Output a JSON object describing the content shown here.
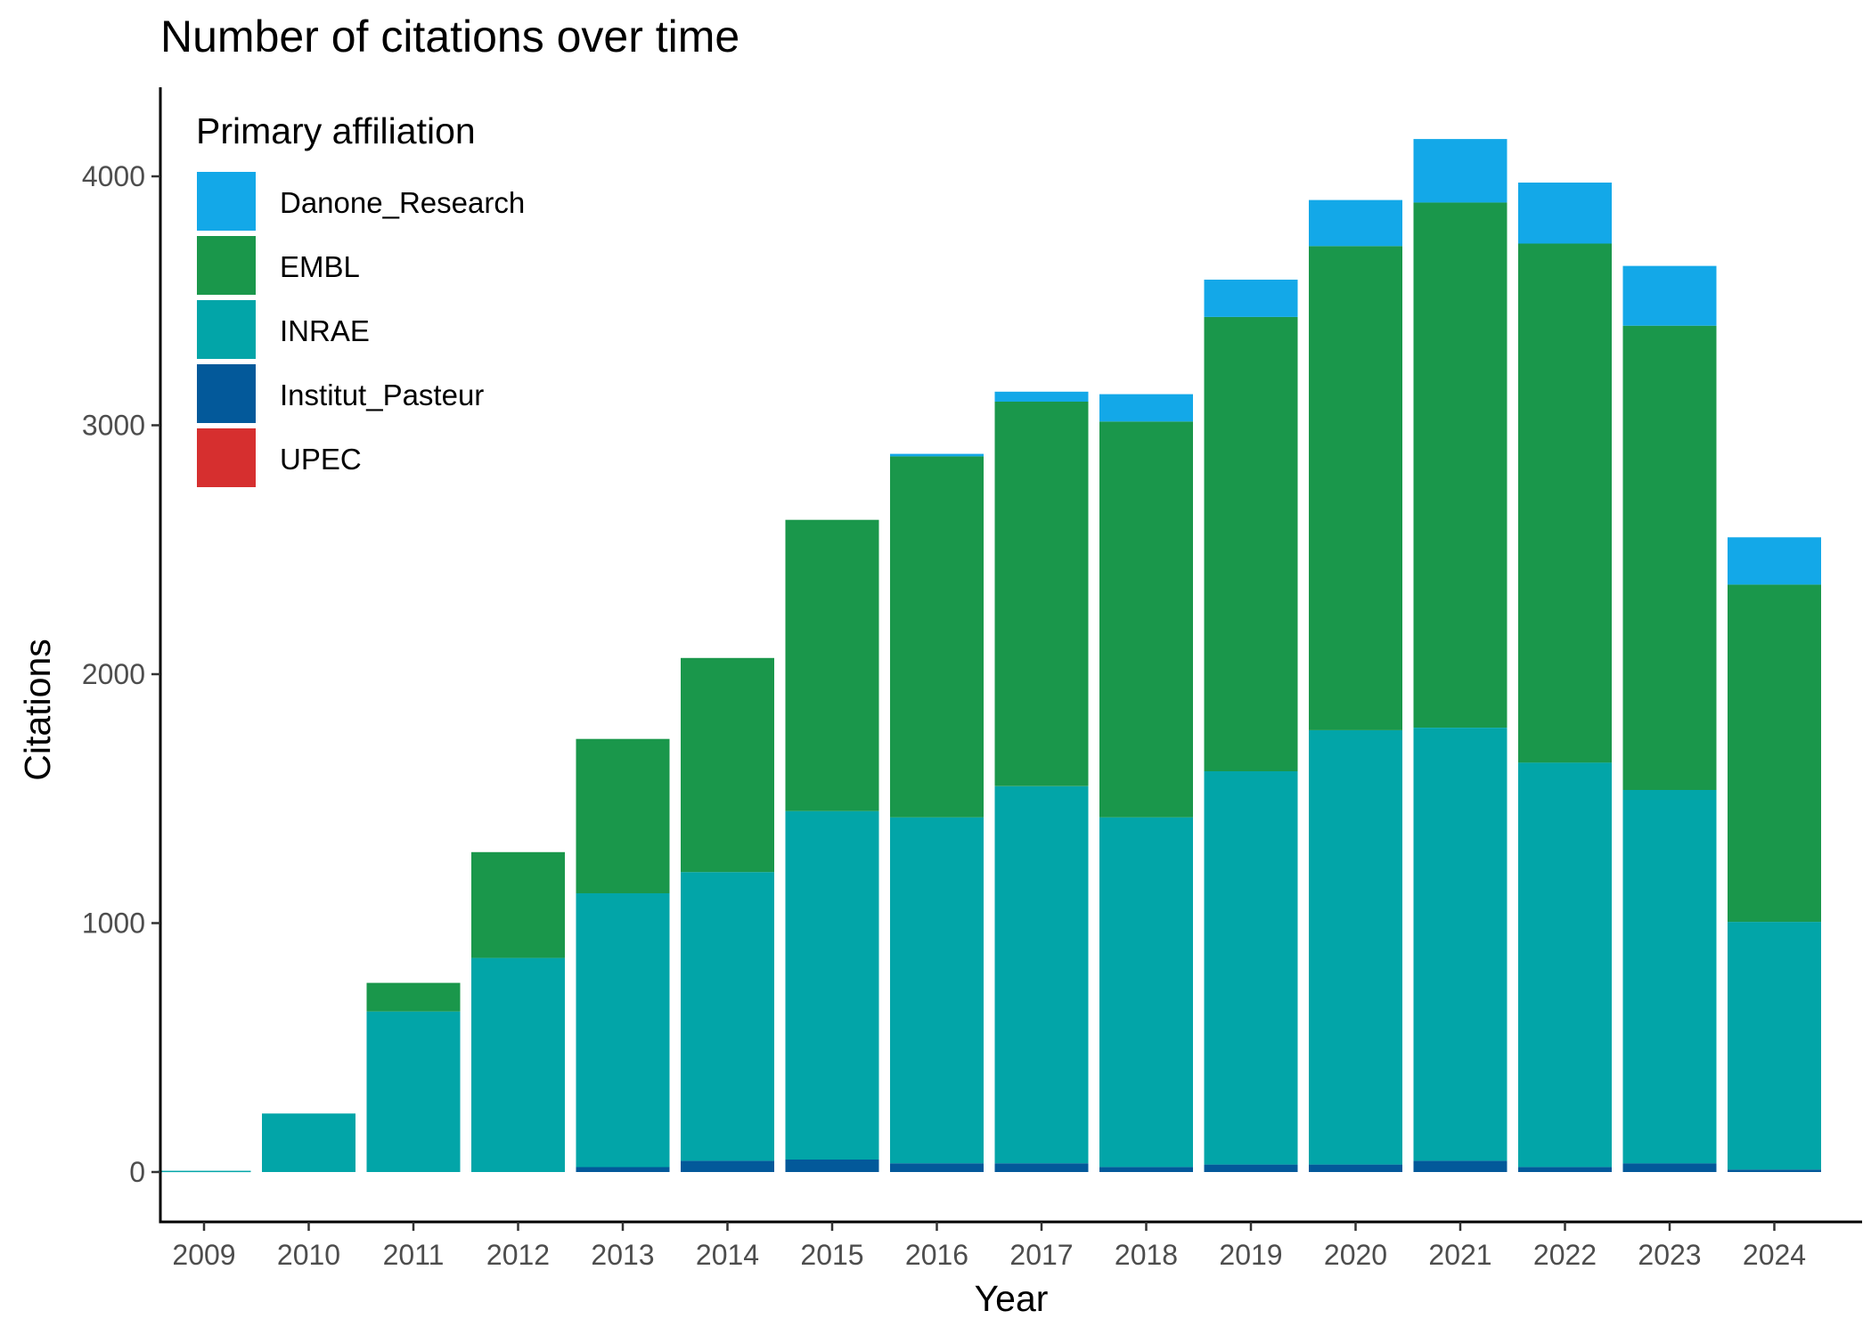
{
  "chart_data": {
    "type": "bar",
    "stacked": true,
    "title": "Number of citations over time",
    "xlabel": "Year",
    "ylabel": "Citations",
    "ylim": [
      -200,
      4350
    ],
    "yticks": [
      0,
      1000,
      2000,
      3000,
      4000
    ],
    "grid": false,
    "legend_position": "top-left",
    "legend_title": "Primary affiliation",
    "categories": [
      "2009",
      "2010",
      "2011",
      "2012",
      "2013",
      "2014",
      "2015",
      "2016",
      "2017",
      "2018",
      "2019",
      "2020",
      "2021",
      "2022",
      "2023",
      "2024"
    ],
    "series": [
      {
        "name": "Danone_Research",
        "color": "#13a8e8",
        "values": [
          0,
          0,
          0,
          0,
          0,
          0,
          0,
          10,
          40,
          110,
          150,
          185,
          255,
          245,
          240,
          190
        ]
      },
      {
        "name": "EMBL",
        "color": "#1a974b",
        "values": [
          0,
          0,
          115,
          425,
          620,
          860,
          1170,
          1450,
          1545,
          1590,
          1825,
          1945,
          2110,
          2085,
          1865,
          1355
        ]
      },
      {
        "name": "INRAE",
        "color": "#02a5a8",
        "values": [
          5,
          235,
          645,
          860,
          1100,
          1160,
          1400,
          1390,
          1515,
          1405,
          1580,
          1745,
          1740,
          1625,
          1500,
          995
        ]
      },
      {
        "name": "Institut_Pasteur",
        "color": "#03599a",
        "values": [
          0,
          0,
          0,
          0,
          20,
          45,
          50,
          35,
          35,
          20,
          30,
          30,
          45,
          20,
          35,
          10
        ]
      },
      {
        "name": "UPEC",
        "color": "#d62f2f",
        "values": [
          0,
          0,
          0,
          0,
          0,
          0,
          0,
          0,
          0,
          0,
          0,
          0,
          0,
          0,
          0,
          0
        ]
      }
    ]
  }
}
